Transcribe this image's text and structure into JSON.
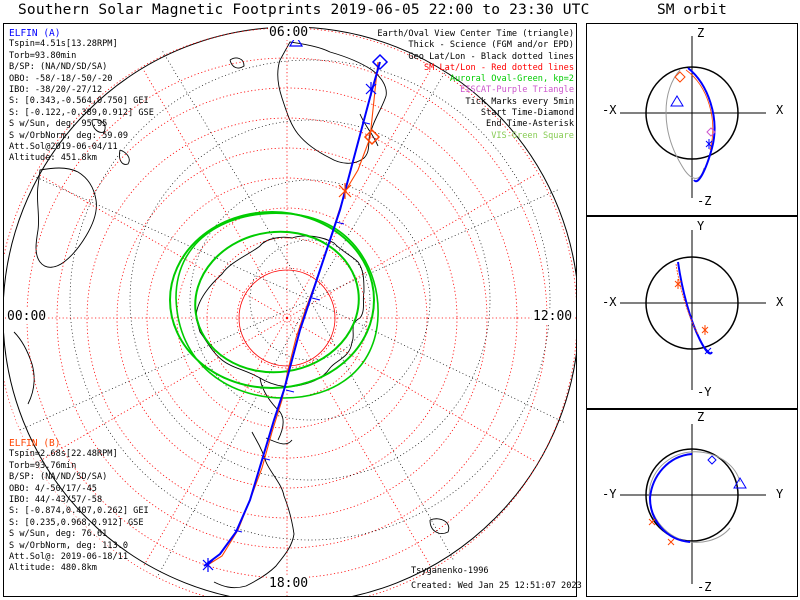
{
  "title": "Southern Solar Magnetic Footprints 2019-06-05 22:00 to 23:30 UTC",
  "orbit_title": "SM orbit",
  "clock_labels": {
    "top": "06:00",
    "left": "00:00",
    "right": "12:00",
    "bottom": "18:00"
  },
  "elfin_a": {
    "name": "ELFIN (A)",
    "color": "#0000ff",
    "lines": [
      "Tspin=4.51s[13.28RPM]",
      "Torb=93.80min",
      "B/SP: (NA/ND/SD/SA)",
      "OBO: -58/-18/-50/-20",
      "IBO: -38/20/-27/12",
      "S: [0.343,-0.564,0.750] GEI",
      "S: [-0.122,-0.389,0.912] GSE",
      "S w/Sun, deg: 95.95",
      "S w/OrbNorm, deg: 59.09",
      "Att.Sol@2019-06-04/11",
      "Altitude: 451.8km"
    ]
  },
  "elfin_b": {
    "name": "ELFIN (B)",
    "color": "#ff4400",
    "lines": [
      "Tspin=2.68s[22.48RPM]",
      "Torb=93.76min",
      "B/SP: (NA/ND/SD/SA)",
      "OBO: 4/-50/17/-45",
      "IBO: 44/-43/57/-58",
      "S: [-0.874,0.407,0.262] GEI",
      "S: [0.235,0.968,0.912] GSE",
      "S w/Sun, deg: 76.61",
      "S w/OrbNorm, deg: 113.0",
      "Att.Sol@: 2019-06-18/11",
      "Altitude: 480.8km"
    ]
  },
  "legend": [
    {
      "text": "Earth/Oval View Center Time (triangle)",
      "color": "#000000"
    },
    {
      "text": "Thick - Science (FGM and/or EPD)",
      "color": "#000000"
    },
    {
      "text": "Geo Lat/Lon - Black dotted lines",
      "color": "#000000"
    },
    {
      "text": "SM Lat/Lon - Red dotted lines",
      "color": "#ff0000"
    },
    {
      "text": "Auroral Oval-Green, kp=2",
      "color": "#00cc00"
    },
    {
      "text": "EISCAT-Purple Triangle",
      "color": "#cc55cc"
    },
    {
      "text": "Tick Marks every 5min",
      "color": "#000000"
    },
    {
      "text": "Start Time-Diamond",
      "color": "#000000"
    },
    {
      "text": "End Time-Asterisk",
      "color": "#000000"
    },
    {
      "text": "VIS-Green Square",
      "color": "#88cc55"
    }
  ],
  "credits": {
    "author": "Tsyganenko-1996",
    "created": "Created: Wed Jan 25 12:51:07 2023"
  },
  "orbit_panels": [
    {
      "top": "Z",
      "bottom": "-Z",
      "left": "-X",
      "right": "X"
    },
    {
      "top": "Y",
      "bottom": "-Y",
      "left": "-X",
      "right": "X"
    },
    {
      "top": "Z",
      "bottom": "-Z",
      "left": "-Y",
      "right": "Y"
    }
  ],
  "colors": {
    "probe_a": "#0000ff",
    "probe_b": "#ff4400",
    "sm_grid": "#ff0000",
    "oval": "#00cc00",
    "geo_grid": "#000000"
  }
}
